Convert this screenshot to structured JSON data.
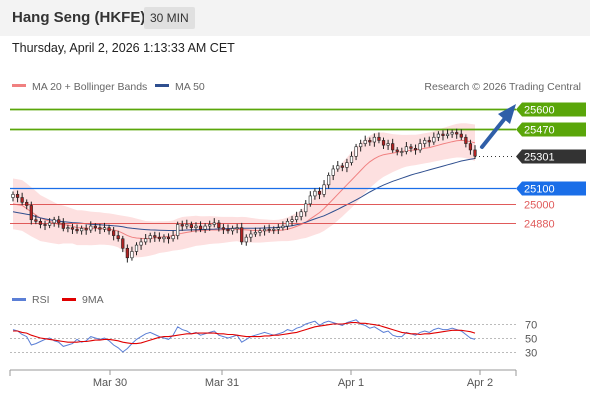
{
  "header": {
    "title": "Hang Seng (HKFE)",
    "timeframe": "30 MIN",
    "datetime": "Thursday, April 2, 2026 1:13:33 AM CET"
  },
  "chart_data": {
    "type": "candlestick",
    "legend": [
      {
        "name": "MA 20 + Bollinger Bands",
        "color": "#f08080"
      },
      {
        "name": "MA 50",
        "color": "#2f4f8f"
      }
    ],
    "credit": "Research © 2026 Trading Central",
    "xticks": [
      "Mar 30",
      "Mar 31",
      "Apr 1",
      "Apr 2"
    ],
    "ylim": [
      24520,
      25680
    ],
    "levels": [
      {
        "value": 25600,
        "label": "25600",
        "kind": "resistance",
        "color": "#5aa60a"
      },
      {
        "value": 25470,
        "label": "25470",
        "kind": "resistance",
        "color": "#5aa60a"
      },
      {
        "value": 25301,
        "label": "25301",
        "kind": "last",
        "color": "#333333"
      },
      {
        "value": 25100,
        "label": "25100",
        "kind": "pivot",
        "color": "#1a6ee8"
      },
      {
        "value": 25000,
        "label": "25000",
        "kind": "support",
        "color": "#e05a5a"
      },
      {
        "value": 24880,
        "label": "24880",
        "kind": "support",
        "color": "#e05a5a"
      }
    ],
    "closes": [
      25060,
      25040,
      25010,
      24990,
      24900,
      24890,
      24870,
      24865,
      24880,
      24900,
      24880,
      24845,
      24850,
      24840,
      24830,
      24845,
      24835,
      24860,
      24850,
      24840,
      24850,
      24830,
      24800,
      24780,
      24720,
      24660,
      24700,
      24740,
      24760,
      24780,
      24800,
      24790,
      24780,
      24790,
      24780,
      24800,
      24870,
      24860,
      24870,
      24850,
      24860,
      24840,
      24860,
      24870,
      24880,
      24850,
      24840,
      24830,
      24845,
      24850,
      24760,
      24790,
      24810,
      24820,
      24830,
      24840,
      24835,
      24840,
      24850,
      24860,
      24890,
      24900,
      24920,
      24950,
      25000,
      25050,
      25080,
      25060,
      25120,
      25180,
      25220,
      25240,
      25230,
      25260,
      25300,
      25360,
      25380,
      25400,
      25390,
      25420,
      25400,
      25370,
      25380,
      25340,
      25330,
      25330,
      25360,
      25350,
      25340,
      25380,
      25400,
      25390,
      25420,
      25440,
      25430,
      25440,
      25450,
      25440,
      25420,
      25380,
      25340,
      25301
    ],
    "ma20": [
      25000,
      24995,
      24990,
      24970,
      24950,
      24930,
      24910,
      24900,
      24890,
      24880,
      24870,
      24870,
      24865,
      24860,
      24850,
      24850,
      24848,
      24845,
      24845,
      24845,
      24842,
      24840,
      24835,
      24828,
      24815,
      24800,
      24790,
      24785,
      24782,
      24780,
      24782,
      24785,
      24790,
      24792,
      24795,
      24800,
      24808,
      24815,
      24820,
      24825,
      24830,
      24830,
      24832,
      24835,
      24835,
      24835,
      24836,
      24838,
      24840,
      24840,
      24838,
      24836,
      24834,
      24832,
      24830,
      24830,
      24830,
      24830,
      24832,
      24835,
      24840,
      24848,
      24858,
      24870,
      24885,
      24905,
      24925,
      24945,
      24970,
      25000,
      25030,
      25060,
      25090,
      25120,
      25150,
      25180,
      25210,
      25240,
      25265,
      25285,
      25300,
      25310,
      25315,
      25320,
      25325,
      25330,
      25335,
      25338,
      25340,
      25345,
      25350,
      25355,
      25362,
      25370,
      25378,
      25385,
      25392,
      25398,
      25400,
      25398,
      25392,
      25385
    ],
    "bb_width": [
      160,
      160,
      160,
      158,
      155,
      150,
      145,
      140,
      135,
      130,
      125,
      120,
      115,
      110,
      110,
      110,
      108,
      106,
      104,
      102,
      100,
      100,
      100,
      102,
      110,
      120,
      125,
      122,
      118,
      112,
      108,
      104,
      100,
      98,
      96,
      95,
      100,
      102,
      100,
      98,
      95,
      92,
      90,
      88,
      86,
      84,
      82,
      80,
      78,
      76,
      80,
      80,
      78,
      76,
      74,
      72,
      70,
      68,
      68,
      70,
      75,
      80,
      85,
      90,
      100,
      110,
      120,
      130,
      140,
      150,
      160,
      165,
      170,
      172,
      175,
      175,
      172,
      170,
      165,
      160,
      150,
      140,
      130,
      120,
      112,
      105,
      100,
      98,
      96,
      95,
      95,
      95,
      96,
      98,
      100,
      102,
      104,
      106,
      108,
      110,
      112,
      115
    ],
    "ma50": [
      24950,
      24945,
      24940,
      24935,
      24930,
      24920,
      24912,
      24905,
      24900,
      24895,
      24890,
      24888,
      24885,
      24882,
      24880,
      24878,
      24875,
      24872,
      24870,
      24868,
      24866,
      24864,
      24862,
      24860,
      24856,
      24850,
      24846,
      24843,
      24840,
      24838,
      24836,
      24835,
      24834,
      24833,
      24832,
      24832,
      24833,
      24834,
      24835,
      24836,
      24837,
      24838,
      24839,
      24840,
      24841,
      24842,
      24843,
      24844,
      24846,
      24847,
      24846,
      24846,
      24846,
      24846,
      24847,
      24848,
      24849,
      24850,
      24852,
      24854,
      24858,
      24862,
      24868,
      24875,
      24884,
      24895,
      24905,
      24915,
      24925,
      24938,
      24952,
      24966,
      24980,
      24995,
      25010,
      25025,
      25040,
      25058,
      25075,
      25090,
      25105,
      25118,
      25130,
      25142,
      25152,
      25162,
      25172,
      25182,
      25190,
      25198,
      25206,
      25214,
      25222,
      25230,
      25238,
      25246,
      25254,
      25262,
      25270,
      25276,
      25281,
      25286
    ],
    "rsi": {
      "levels": [
        70,
        50,
        30
      ],
      "series": [
        {
          "name": "RSI",
          "color": "#5b7fd6"
        },
        {
          "name": "9MA",
          "color": "#e00000"
        }
      ],
      "rsi_values": [
        62,
        60,
        55,
        52,
        40,
        42,
        45,
        48,
        50,
        46,
        44,
        38,
        40,
        42,
        48,
        44,
        46,
        52,
        50,
        48,
        50,
        46,
        40,
        36,
        30,
        35,
        42,
        48,
        52,
        56,
        58,
        55,
        52,
        50,
        48,
        54,
        66,
        62,
        60,
        56,
        58,
        54,
        56,
        58,
        60,
        54,
        52,
        50,
        52,
        54,
        44,
        48,
        52,
        54,
        56,
        58,
        56,
        54,
        56,
        58,
        62,
        60,
        64,
        66,
        70,
        72,
        74,
        68,
        72,
        74,
        72,
        70,
        68,
        72,
        74,
        76,
        70,
        68,
        64,
        66,
        62,
        58,
        60,
        54,
        52,
        52,
        58,
        56,
        54,
        58,
        60,
        58,
        62,
        64,
        62,
        62,
        64,
        62,
        60,
        55,
        50,
        48
      ],
      "ma_values": [
        60,
        60,
        58,
        57,
        54,
        52,
        50,
        49,
        48,
        47,
        46,
        45,
        44,
        44,
        44,
        45,
        45,
        46,
        47,
        47,
        48,
        48,
        47,
        46,
        44,
        43,
        42,
        42,
        43,
        45,
        47,
        49,
        51,
        52,
        52,
        53,
        54,
        55,
        56,
        56,
        57,
        57,
        57,
        57,
        57,
        56,
        56,
        55,
        55,
        54,
        53,
        52,
        52,
        52,
        52,
        53,
        53,
        54,
        54,
        55,
        56,
        57,
        58,
        60,
        62,
        64,
        66,
        67,
        68,
        69,
        70,
        70,
        70,
        71,
        72,
        72,
        71,
        71,
        70,
        69,
        68,
        66,
        64,
        62,
        60,
        58,
        57,
        56,
        56,
        55,
        56,
        56,
        57,
        58,
        59,
        60,
        61,
        61,
        61,
        60,
        59,
        57
      ]
    }
  }
}
